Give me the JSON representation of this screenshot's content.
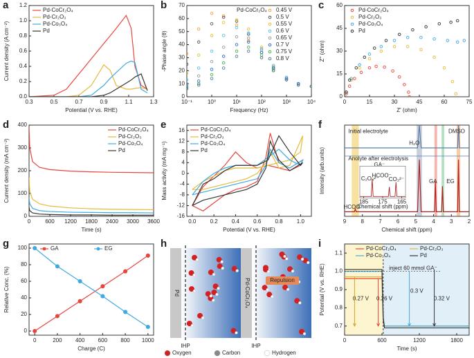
{
  "chart_data": [
    {
      "panel": "a",
      "type": "line",
      "xlabel": "Potential (V vs. RHE)",
      "ylabel": "Current density (A cm⁻²)",
      "legend": "upper left",
      "xlim": [
        0.3,
        1.3
      ],
      "xticks": [
        0.3,
        0.5,
        0.7,
        0.9,
        1.1,
        1.3
      ],
      "ylim": [
        0,
        1.2
      ],
      "yticks": [
        {
          "value": 0,
          "label": "0.0"
        },
        0.2,
        0.4,
        0.6,
        0.8,
        {
          "value": 1,
          "label": "1.0"
        },
        1.2
      ],
      "x": [
        0.3,
        0.5,
        0.6,
        0.7,
        0.8,
        0.9,
        0.95,
        1.0,
        1.08,
        1.12,
        1.15,
        1.2,
        1.25
      ],
      "series": [
        {
          "name": "Pd-CoCr₂O₄",
          "color": "#e8453c",
          "values": [
            0,
            0.02,
            0.1,
            0.3,
            0.5,
            0.7,
            0.8,
            0.9,
            1.07,
            0.9,
            0.4,
            0.15,
            0.1
          ]
        },
        {
          "name": "Pd-Cr₂O₃",
          "color": "#e6b93a",
          "values": [
            0,
            0,
            0,
            0.02,
            0.15,
            0.42,
            0.35,
            0.15,
            0.1,
            0.1,
            0.11,
            0.12,
            0.1
          ]
        },
        {
          "name": "Pd-Co₃O₄",
          "color": "#3fa9e0",
          "values": [
            0,
            0,
            0,
            0,
            0.02,
            0.15,
            0.24,
            0.32,
            0.44,
            0.47,
            0.45,
            0.1,
            0.05
          ]
        },
        {
          "name": "Pd",
          "color": "#333333",
          "values": [
            0,
            0,
            0,
            0,
            0,
            0.02,
            0.05,
            0.1,
            0.18,
            0.22,
            0.26,
            0.3,
            0.08
          ]
        }
      ]
    },
    {
      "panel": "b",
      "type": "scatter",
      "xscale": "log",
      "xlabel": "Frequency (Hz)",
      "ylabel": "-Phase angle (θ)",
      "legend": "upper right",
      "legend_title": "Pd-CoCr₂O₄",
      "xlim": [
        0.1,
        10000
      ],
      "xticks": [
        {
          "value": 0.1,
          "label": "10⁻¹"
        },
        {
          "value": 1,
          "label": "10⁰"
        },
        {
          "value": 10,
          "label": "10¹"
        },
        {
          "value": 100,
          "label": "10²"
        },
        {
          "value": 1000,
          "label": "10³"
        },
        {
          "value": 10000,
          "label": "10⁴"
        }
      ],
      "ylim": [
        0,
        70
      ],
      "yticks": [
        0,
        10,
        20,
        30,
        40,
        50,
        60,
        70
      ],
      "x": [
        0.1,
        0.3,
        1,
        3,
        10,
        30,
        100,
        300,
        1000,
        3000,
        10000
      ],
      "series": [
        {
          "name": "0.45 V",
          "color": "#f4a13a",
          "values": [
            33,
            52,
            64,
            62,
            55,
            43,
            30,
            20,
            13,
            10,
            8
          ]
        },
        {
          "name": "0.5 V",
          "color": "#555555",
          "values": [
            25,
            42,
            56,
            61,
            58,
            48,
            34,
            22,
            14,
            10,
            8
          ]
        },
        {
          "name": "0.55 V",
          "color": "#e6c030",
          "values": [
            18,
            32,
            47,
            57,
            59,
            52,
            38,
            24,
            15,
            10,
            8
          ]
        },
        {
          "name": "0.6 V",
          "color": "#5bc0eb",
          "values": [
            13,
            22,
            35,
            47,
            53,
            49,
            37,
            24,
            15,
            10,
            8
          ]
        },
        {
          "name": "0.65 V",
          "color": "#999999",
          "values": [
            10,
            16,
            27,
            38,
            46,
            45,
            36,
            23,
            14,
            10,
            8
          ]
        },
        {
          "name": "0.7 V",
          "color": "#2f6fd0",
          "values": [
            8,
            12,
            21,
            31,
            40,
            42,
            34,
            22,
            14,
            10,
            8
          ]
        },
        {
          "name": "0.75 V",
          "color": "#4caf50",
          "values": [
            7,
            10,
            17,
            26,
            35,
            38,
            32,
            21,
            13,
            9,
            8
          ]
        },
        {
          "name": "0.8 V",
          "color": "#5a7a9a",
          "values": [
            6,
            9,
            14,
            22,
            31,
            35,
            30,
            20,
            13,
            9,
            8
          ]
        }
      ]
    },
    {
      "panel": "c",
      "type": "scatter",
      "xlabel": "Z' (ohm)",
      "ylabel": "Z'' (ohm)",
      "legend": "upper left",
      "xlim": [
        0,
        75
      ],
      "xticks": [
        0,
        15,
        30,
        45,
        60,
        75
      ],
      "ylim": [
        0,
        60
      ],
      "yticks": [
        0,
        15,
        30,
        45,
        60
      ],
      "series": [
        {
          "name": "Pd-CoCr₂O₄",
          "color": "#e8453c",
          "x": [
            1,
            3,
            6,
            10,
            15,
            19,
            24,
            29,
            33,
            36,
            38.5,
            39
          ],
          "values": [
            2,
            7,
            12,
            16,
            19,
            20,
            19.5,
            17,
            13,
            8,
            3,
            0
          ]
        },
        {
          "name": "Pd-Cr₂O₃",
          "color": "#e6b93a",
          "x": [
            1,
            4,
            9,
            15,
            22,
            30,
            38,
            46,
            54,
            60,
            65,
            67
          ],
          "values": [
            3,
            11,
            19,
            25,
            30,
            33,
            33,
            31,
            26,
            19,
            10,
            2
          ]
        },
        {
          "name": "Pd-Co₃O₄",
          "color": "#3fa9e0",
          "x": [
            1,
            4,
            9,
            15,
            22,
            30,
            38,
            46,
            54,
            62,
            68,
            72
          ],
          "values": [
            3,
            12,
            21,
            28,
            33,
            37,
            39,
            39,
            38,
            37,
            36,
            37
          ]
        },
        {
          "name": "Pd",
          "color": "#333333",
          "x": [
            1,
            3,
            7,
            12,
            18,
            25,
            33,
            41,
            49,
            57,
            64,
            68
          ],
          "values": [
            3,
            11,
            19,
            26,
            32,
            37,
            41,
            44,
            46,
            48,
            49,
            50
          ]
        }
      ]
    },
    {
      "panel": "d",
      "type": "line",
      "xlabel": "Time (s)",
      "ylabel": "Current density (mA cm⁻²)",
      "legend": "upper right",
      "xlim": [
        0,
        3600
      ],
      "xticks": [
        0,
        600,
        1200,
        1800,
        2400,
        3000,
        3600
      ],
      "ylim": [
        0,
        400
      ],
      "yticks": [
        0,
        100,
        200,
        300,
        400
      ],
      "x": [
        0,
        20,
        100,
        300,
        600,
        1200,
        1800,
        2400,
        3000,
        3600
      ],
      "series": [
        {
          "name": "Pd-CoCr₂O₄",
          "color": "#e8453c",
          "values": [
            390,
            300,
            240,
            215,
            205,
            198,
            195,
            193,
            192,
            191
          ]
        },
        {
          "name": "Pd-Cr₂O₃",
          "color": "#e6b93a",
          "values": [
            170,
            110,
            75,
            55,
            45,
            37,
            33,
            31,
            30,
            29
          ]
        },
        {
          "name": "Pd-Co₃O₄",
          "color": "#3fa9e0",
          "values": [
            80,
            55,
            35,
            25,
            21,
            18,
            17,
            16,
            16,
            15
          ]
        },
        {
          "name": "Pd",
          "color": "#333333",
          "values": [
            40,
            25,
            15,
            10,
            8,
            6,
            6,
            5,
            5,
            5
          ]
        }
      ]
    },
    {
      "panel": "e",
      "type": "line",
      "xlabel": "Potential (V vs. RHE)",
      "ylabel": "Mass activity (mA mg⁻¹)",
      "legend": "upper left",
      "xlim": [
        -0.05,
        1.1
      ],
      "xticks": [
        {
          "value": 0,
          "label": "0.0"
        },
        0.2,
        0.4,
        0.6,
        0.8,
        {
          "value": 1,
          "label": "1.0"
        }
      ],
      "ylim": [
        -16,
        18
      ],
      "yticks": [
        -16,
        -12,
        -8,
        -4,
        0,
        4,
        8,
        12,
        16
      ],
      "x": [
        0,
        0.1,
        0.2,
        0.3,
        0.4,
        0.5,
        0.6,
        0.7,
        0.8,
        0.9,
        1.0,
        1.02,
        0.9,
        0.8,
        0.72,
        0.68,
        0.6,
        0.5,
        0.4,
        0.3,
        0.2,
        0.1,
        0
      ],
      "series": [
        {
          "name": "Pd-CoCr₂O₄",
          "color": "#e8453c",
          "values": [
            -12,
            -5,
            -1,
            3,
            8,
            4,
            2,
            3,
            2,
            1,
            3,
            5,
            2,
            4,
            15,
            6,
            -3,
            -5,
            -6,
            -8,
            -11,
            -14,
            -12
          ]
        },
        {
          "name": "Pd-Cr₂O₃",
          "color": "#e6b93a",
          "values": [
            -6,
            -3,
            -1,
            1,
            2,
            2,
            2,
            3,
            4,
            5,
            8,
            14,
            3,
            2,
            8,
            4,
            0,
            -2,
            -3,
            -4,
            -5,
            -6,
            -6
          ]
        },
        {
          "name": "Pd-Co₃O₄",
          "color": "#3fa9e0",
          "values": [
            -8,
            -3,
            0,
            2,
            3,
            3,
            3,
            6,
            9,
            5,
            3,
            5,
            2,
            4,
            9,
            3,
            -2,
            -3,
            -4,
            -5,
            -6,
            -7,
            -8
          ]
        },
        {
          "name": "Pd",
          "color": "#333333",
          "values": [
            -12,
            -4,
            -2,
            1,
            3,
            3,
            3,
            5,
            14,
            8,
            3,
            4,
            1,
            5,
            12,
            2,
            -4,
            -6,
            -7,
            -8,
            -9,
            -10,
            -12
          ]
        }
      ]
    },
    {
      "panel": "f",
      "type": "line",
      "xlabel": "Chemical shift (ppm)",
      "ylabel": "Intensity (arb.units)",
      "xlim": [
        9,
        2
      ],
      "xticks": [
        9,
        8,
        7,
        6,
        5,
        4,
        3,
        2
      ],
      "ylim": [
        0,
        1
      ],
      "bands": [
        {
          "range": [
            8.6,
            8.2
          ],
          "color": "#f7dc8f"
        },
        {
          "range": [
            4.95,
            4.65
          ],
          "color": "#bfc8d6"
        },
        {
          "range": [
            3.95,
            3.8
          ],
          "color": "#f4a8a0"
        },
        {
          "range": [
            3.55,
            3.4
          ],
          "color": "#a8dcb8"
        },
        {
          "range": [
            2.7,
            2.5
          ],
          "color": "#f6c49a"
        }
      ],
      "series": [
        {
          "color": "#5a7fa8",
          "x": [
            9,
            4.9,
            4.8,
            4.7,
            2.65,
            2.6,
            2.55,
            2
          ],
          "values": [
            0.75,
            0.75,
            1.0,
            0.75,
            0.75,
            1.0,
            0.75,
            0.75
          ]
        },
        {
          "color": "#b02020",
          "x": [
            9,
            8.45,
            8.4,
            8.35,
            4.9,
            4.8,
            4.7,
            3.95,
            3.9,
            3.85,
            3.55,
            3.5,
            3.45,
            2.65,
            2.6,
            2.55,
            2
          ],
          "values": [
            0.05,
            0.05,
            0.08,
            0.05,
            0.05,
            0.62,
            0.05,
            0.05,
            0.38,
            0.05,
            0.05,
            0.33,
            0.05,
            0.05,
            0.62,
            0.05,
            0.05
          ]
        }
      ],
      "annotations": [
        "Initial electrolyte",
        "H₂O",
        "DMSO",
        "Anolyte after electrolysis",
        "GA⁻",
        "GA",
        "EG",
        "HCOO⁻"
      ],
      "inset": {
        "xlim": [
          187,
          163
        ],
        "xticks": [
          185,
          175,
          165
        ],
        "xlabel": "Chemical shift (ppm)",
        "labels": [
          "C₂O₄²⁻",
          "HCOO⁻",
          "CO₃²⁻"
        ],
        "x": [
          187,
          181,
          180.5,
          180,
          172,
          171.5,
          171,
          168.5,
          168,
          167.5,
          163
        ],
        "values": [
          0.05,
          0.05,
          0.6,
          0.05,
          0.05,
          0.35,
          0.05,
          0.05,
          0.5,
          0.05,
          0.05
        ]
      }
    },
    {
      "panel": "g",
      "type": "line",
      "markers": true,
      "xlabel": "Charge (C)",
      "ylabel": "Relative Conc. (%)",
      "legend": "upper center",
      "legend_columns": 2,
      "xlim": [
        -50,
        1050
      ],
      "xticks": [
        0,
        200,
        400,
        600,
        800,
        1000
      ],
      "ylim": [
        -5,
        105
      ],
      "yticks": [
        0,
        20,
        40,
        60,
        80,
        100
      ],
      "x": [
        0,
        200,
        400,
        600,
        800,
        1000
      ],
      "series": [
        {
          "name": "GA",
          "color": "#e8453c",
          "values": [
            0,
            18,
            36,
            54,
            72,
            91
          ],
          "errors": [
            1,
            1.5,
            1.5,
            1.5,
            1.5,
            1.5
          ]
        },
        {
          "name": "EG",
          "color": "#3fa9e0",
          "values": [
            100,
            78,
            60,
            42,
            23,
            5
          ],
          "errors": [
            1,
            1.5,
            1.5,
            1.5,
            1.5,
            1.5
          ]
        }
      ]
    },
    {
      "panel": "i",
      "type": "line",
      "xlabel": "Time (s)",
      "ylabel": "Potential (V vs. RHE)",
      "legend": "upper center",
      "legend_columns": 2,
      "xlim": [
        0,
        2000
      ],
      "xticks": [
        0,
        600,
        1200,
        1800
      ],
      "ylim": [
        0.65,
        1.15
      ],
      "yticks": [
        0.7,
        0.8,
        0.9,
        {
          "value": 1,
          "label": "1.0"
        },
        1.1
      ],
      "bands": [
        {
          "range": [
            0,
            620
          ],
          "color": "#fbf3c8"
        },
        {
          "range": [
            620,
            2000
          ],
          "color": "#dcecf8"
        }
      ],
      "x": [
        0,
        600,
        620,
        640,
        2000
      ],
      "series": [
        {
          "name": "Pd-CoCr₂O₄",
          "color": "#e8453c",
          "values": [
            0.96,
            0.96,
            0.72,
            0.7,
            0.7
          ]
        },
        {
          "name": "Pd-Cr₂O₃",
          "color": "#e6b93a",
          "values": [
            0.97,
            0.97,
            0.73,
            0.7,
            0.7
          ]
        },
        {
          "name": "Pd-Co₃O₄",
          "color": "#3fa9e0",
          "values": [
            1.0,
            1.0,
            0.74,
            0.7,
            0.7
          ]
        },
        {
          "name": "Pd",
          "color": "#333333",
          "values": [
            1.01,
            1.01,
            0.75,
            0.69,
            0.69
          ]
        }
      ],
      "annotations": [
        "inject 60 mmol GA⁻",
        "0.27 V",
        "0.26 V",
        "0.3 V",
        "0.32 V"
      ]
    }
  ],
  "diagram": {
    "panel": "h",
    "left": "Pd",
    "right": "Pd-CoCr₂O₄",
    "repulsion": "Repulsion",
    "ihp": [
      "IHP",
      "IHP"
    ],
    "legend": [
      "Oxygen",
      "Carbon",
      "Hydrogen"
    ]
  }
}
